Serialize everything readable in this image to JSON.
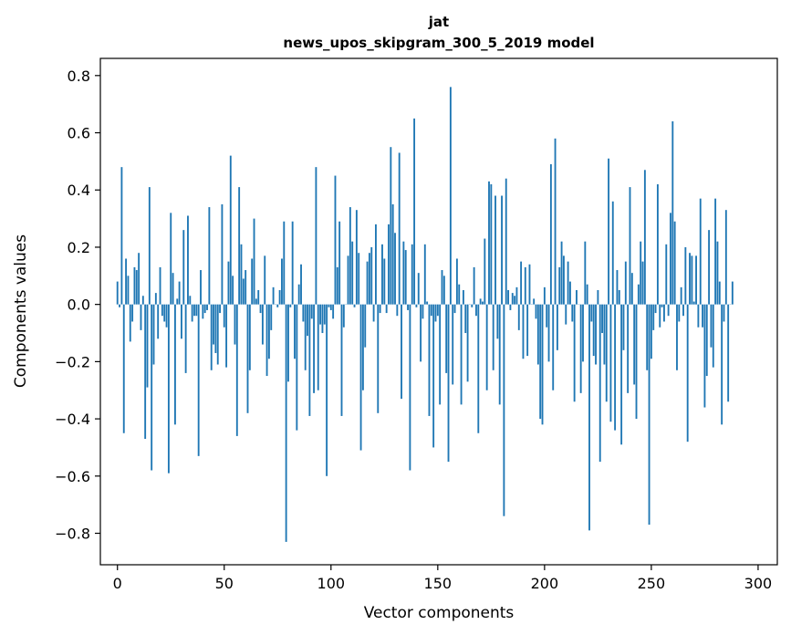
{
  "chart_data": {
    "type": "bar",
    "title": "jat",
    "subtitle": "news_upos_skipgram_300_5_2019 model",
    "xlabel": "Vector components",
    "ylabel": "Components values",
    "xlim": [
      -8,
      309
    ],
    "ylim": [
      -0.91,
      0.86
    ],
    "xticks": [
      0,
      50,
      100,
      150,
      200,
      250,
      300
    ],
    "yticks": [
      -0.8,
      -0.6,
      -0.4,
      -0.2,
      0.0,
      0.2,
      0.4,
      0.6,
      0.8
    ],
    "xtick_labels": [
      "0",
      "50",
      "100",
      "150",
      "200",
      "250",
      "300"
    ],
    "ytick_labels": [
      "−0.8",
      "−0.6",
      "−0.4",
      "−0.2",
      "0.0",
      "0.2",
      "0.4",
      "0.6",
      "0.8"
    ],
    "bar_color": "#1f77b4",
    "grid": false,
    "values": [
      0.08,
      -0.01,
      0.48,
      -0.45,
      0.16,
      0.1,
      -0.13,
      -0.06,
      0.13,
      0.12,
      0.18,
      -0.09,
      0.03,
      -0.47,
      -0.29,
      0.41,
      -0.58,
      -0.21,
      0.04,
      -0.12,
      0.13,
      -0.04,
      -0.06,
      -0.08,
      -0.59,
      0.32,
      0.11,
      -0.42,
      0.02,
      0.08,
      -0.12,
      0.26,
      -0.24,
      0.31,
      0.03,
      -0.06,
      -0.04,
      -0.04,
      -0.53,
      0.12,
      -0.05,
      -0.03,
      -0.02,
      0.34,
      -0.23,
      -0.14,
      -0.17,
      -0.21,
      -0.03,
      0.35,
      -0.08,
      -0.22,
      0.15,
      0.52,
      0.1,
      -0.14,
      -0.46,
      0.41,
      0.21,
      0.09,
      0.12,
      -0.38,
      -0.23,
      0.16,
      0.3,
      0.02,
      0.05,
      -0.03,
      -0.14,
      0.17,
      -0.25,
      -0.19,
      -0.09,
      0.06,
      0.0,
      -0.01,
      0.05,
      0.16,
      0.29,
      -0.83,
      -0.27,
      -0.01,
      0.29,
      -0.19,
      -0.44,
      0.07,
      0.14,
      -0.06,
      -0.23,
      -0.11,
      -0.39,
      -0.05,
      -0.31,
      0.48,
      -0.3,
      -0.07,
      -0.1,
      -0.07,
      -0.6,
      -0.01,
      -0.02,
      -0.05,
      0.45,
      0.13,
      0.29,
      -0.39,
      -0.08,
      0.0,
      0.17,
      0.34,
      0.22,
      -0.01,
      0.33,
      0.18,
      -0.51,
      -0.3,
      -0.15,
      0.15,
      0.18,
      0.2,
      -0.06,
      0.28,
      -0.38,
      -0.03,
      0.21,
      0.16,
      -0.03,
      0.28,
      0.55,
      0.35,
      0.25,
      -0.04,
      0.53,
      -0.33,
      0.22,
      0.19,
      -0.02,
      -0.58,
      0.21,
      0.65,
      -0.01,
      0.11,
      -0.2,
      -0.05,
      0.21,
      0.01,
      -0.39,
      -0.04,
      -0.5,
      -0.06,
      -0.04,
      -0.35,
      0.12,
      0.1,
      -0.24,
      -0.55,
      0.76,
      -0.28,
      -0.03,
      0.16,
      0.07,
      -0.35,
      0.05,
      -0.1,
      -0.27,
      0.0,
      -0.01,
      0.13,
      -0.04,
      -0.45,
      0.02,
      0.01,
      0.23,
      -0.3,
      0.43,
      0.42,
      -0.23,
      0.38,
      -0.12,
      -0.35,
      0.38,
      -0.74,
      0.44,
      0.05,
      -0.02,
      0.04,
      0.03,
      0.06,
      -0.09,
      0.15,
      -0.19,
      0.13,
      -0.18,
      0.14,
      0.0,
      0.02,
      -0.05,
      -0.21,
      -0.4,
      -0.42,
      0.06,
      -0.08,
      -0.2,
      0.49,
      -0.3,
      0.58,
      -0.16,
      0.13,
      0.22,
      0.17,
      -0.07,
      0.15,
      0.08,
      -0.06,
      -0.34,
      0.05,
      0.0,
      -0.31,
      -0.2,
      0.22,
      0.07,
      -0.79,
      -0.06,
      -0.18,
      -0.21,
      0.05,
      -0.55,
      -0.1,
      -0.21,
      -0.34,
      0.51,
      -0.41,
      0.36,
      -0.44,
      0.12,
      0.05,
      -0.49,
      -0.16,
      0.15,
      -0.31,
      0.41,
      0.11,
      -0.28,
      -0.4,
      0.07,
      0.22,
      0.15,
      0.47,
      -0.23,
      -0.77,
      -0.19,
      -0.09,
      -0.03,
      0.42,
      -0.08,
      -0.01,
      -0.06,
      0.21,
      -0.04,
      0.32,
      0.64,
      0.29,
      -0.23,
      -0.06,
      0.06,
      -0.04,
      0.2,
      -0.48,
      0.18,
      0.17,
      0.01,
      0.17,
      -0.08,
      0.37,
      -0.08,
      -0.36,
      -0.25,
      0.26,
      -0.15,
      -0.22,
      0.37,
      0.22,
      0.08,
      -0.42,
      -0.06,
      0.33,
      -0.34,
      0.0,
      0.08
    ]
  }
}
